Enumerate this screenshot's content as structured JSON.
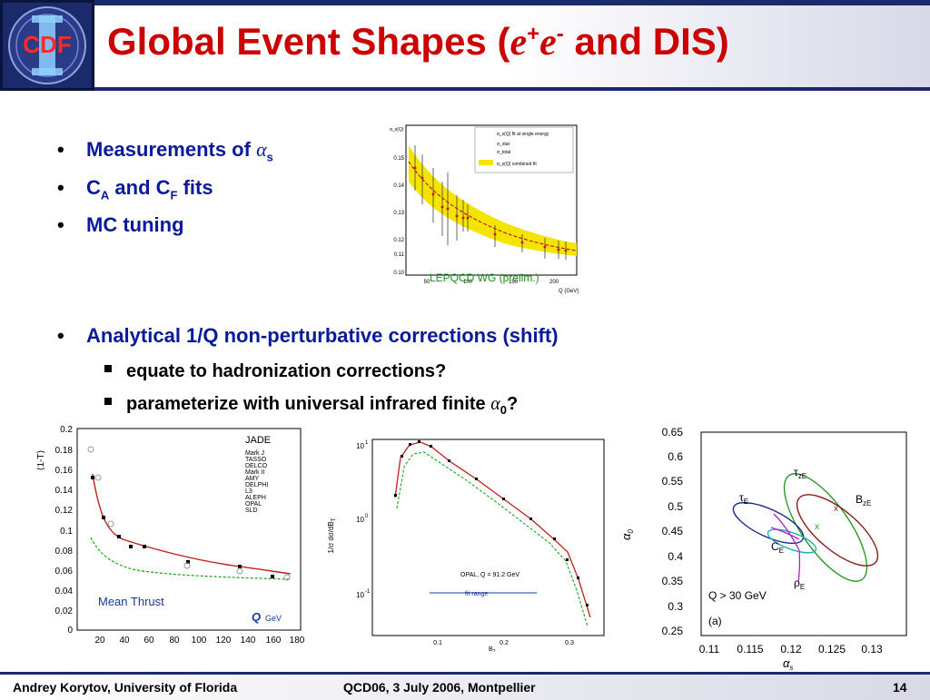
{
  "header": {
    "title_prefix": "Global Event Shapes (",
    "title_e1": "e",
    "title_sup1": "+",
    "title_e2": "e",
    "title_sup2": "-",
    "title_suffix": " and DIS)",
    "logo_text": "CDF"
  },
  "bullets": [
    {
      "text": "Measurements of ",
      "greek": "α",
      "sub": "s"
    },
    {
      "text": "C",
      "sub": "A",
      "text2": " and C",
      "sub2": "F",
      "text3": " fits"
    },
    {
      "text": "MC tuning"
    },
    {
      "text": "Analytical 1/Q non-perturbative corrections (shift)"
    }
  ],
  "subbullets": [
    {
      "text": "equate to hadronization corrections?"
    },
    {
      "text": "parameterize with universal infrared finite ",
      "greek": "α",
      "sub": "0",
      "tail": "?"
    }
  ],
  "plot_lepqcd": {
    "label": "LEPQCD WG (prelim.)",
    "legend": [
      "α_s(Q) fit at single energy",
      "σ_stat",
      "σ_total",
      "α_s(Q) combined fit"
    ],
    "yticks": [
      "0.15",
      "0.14",
      "0.13",
      "0.12",
      "0.11",
      "0.10"
    ],
    "xticks": [
      "50",
      "100",
      "150",
      "200"
    ],
    "xunit": "Q (GeV)",
    "ylabel": "α_s(Q)"
  },
  "plot_thrust": {
    "ylabel": "⟨1-T⟩",
    "yticks": [
      "0.2",
      "0.18",
      "0.16",
      "0.14",
      "0.12",
      "0.1",
      "0.08",
      "0.06",
      "0.04",
      "0.02",
      "0"
    ],
    "xticks": [
      "20",
      "40",
      "60",
      "80",
      "100",
      "120",
      "140",
      "160",
      "180"
    ],
    "label": "Mean Thrust",
    "xunit_q": "Q",
    "xunit": "GeV",
    "legend_title": "JADE",
    "legend": [
      "Mark J",
      "TASSO",
      "DELCO",
      "Mark II",
      "AMY",
      "DELPHI",
      "L3",
      "ALEPH",
      "OPAL",
      "SLD"
    ]
  },
  "plot_bt": {
    "yticks": [
      "10",
      "10",
      "10"
    ],
    "yexp": [
      "1",
      "0",
      "-1"
    ],
    "xticks": [
      "0.1",
      "0.2",
      "0.3"
    ],
    "xlabel": "B",
    "xsub": "T",
    "ylabel": "1/σ dσ/dB",
    "ylabel_sub": "T",
    "annotation": "OPAL,   Q =   91.2 GeV",
    "range_label": "fit range"
  },
  "plot_alpha0": {
    "yticks": [
      "0.65",
      "0.6",
      "0.55",
      "0.5",
      "0.45",
      "0.4",
      "0.35",
      "0.3",
      "0.25"
    ],
    "xticks": [
      "0.11",
      "0.115",
      "0.12",
      "0.125",
      "0.13"
    ],
    "ylabel": "α",
    "ylabel_sub": "0",
    "xlabel": "α",
    "xlabel_sub": "s",
    "labels": [
      "τ",
      "B",
      "τ",
      "C",
      "ρ",
      "x",
      "x"
    ],
    "label_subs": [
      "zE",
      "zE",
      "E",
      "E",
      "E"
    ],
    "note": "Q > 30 GeV",
    "panel": "(a)"
  },
  "footer": {
    "left": "Andrey Korytov, University of Florida",
    "center": "QCD06, 3 July 2006, Montpellier",
    "page": "14"
  }
}
